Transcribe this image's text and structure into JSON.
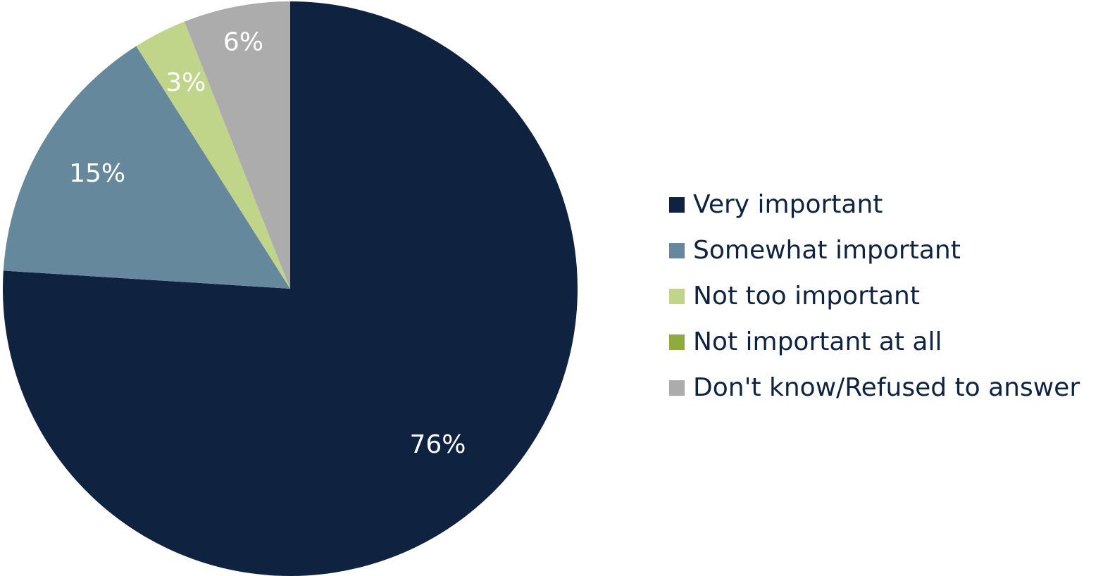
{
  "chart_data": {
    "type": "pie",
    "slices": [
      {
        "name": "Very important",
        "value": 76,
        "label": "76%",
        "color": "#0f2340",
        "label_color": "#ffffff"
      },
      {
        "name": "Somewhat important",
        "value": 15,
        "label": "15%",
        "color": "#66889c",
        "label_color": "#ffffff"
      },
      {
        "name": "Not too important",
        "value": 3,
        "label": "3%",
        "color": "#c0d58a",
        "label_color": "#0f2340"
      },
      {
        "name": "Not important at all",
        "value": 0,
        "label": "",
        "color": "#8fab3d",
        "label_color": "#ffffff"
      },
      {
        "name": "Don't know/Refused to answer",
        "value": 6,
        "label": "6%",
        "color": "#acacac",
        "label_color": "#ffffff"
      }
    ],
    "start_angle": "12 o'clock",
    "direction": "clockwise",
    "legend_position": "right"
  },
  "legend": {
    "items": [
      {
        "label": "Very important",
        "color": "#0f2340"
      },
      {
        "label": "Somewhat important",
        "color": "#66889c"
      },
      {
        "label": "Not too important",
        "color": "#c0d58a"
      },
      {
        "label": "Not important at all",
        "color": "#8fab3d"
      },
      {
        "label": "Don't know/Refused to answer",
        "color": "#acacac"
      }
    ]
  }
}
